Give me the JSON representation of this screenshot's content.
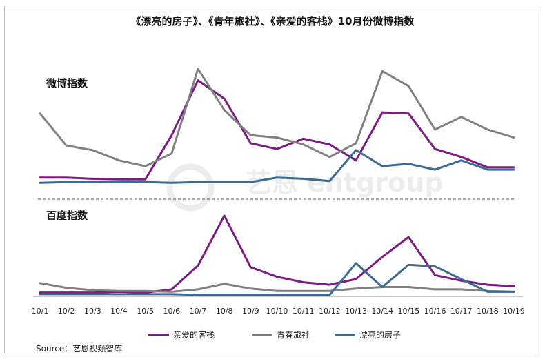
{
  "title": "《漂亮的房子》、《青年旅社》、《亲爱的客栈》10月份微博指数",
  "watermark": "艺恩 entgroup",
  "source": "Source：艺恩视频智库",
  "colors": {
    "亲爱的客栈": "#7b1a83",
    "青春旅社": "#808080",
    "漂亮的房子": "#3a6a96"
  },
  "chart_data": [
    {
      "type": "line",
      "title": "微博指数",
      "categories": [
        "10/1",
        "10/2",
        "10/3",
        "10/4",
        "10/5",
        "10/6",
        "10/7",
        "10/8",
        "10/9",
        "10/10",
        "10/11",
        "10/12",
        "10/13",
        "10/14",
        "10/15",
        "10/16",
        "10/17",
        "10/18",
        "10/19"
      ],
      "ylim": [
        0,
        100
      ],
      "grid": false,
      "legend": "bottom",
      "series": [
        {
          "name": "亲爱的客栈",
          "values": [
            5,
            5,
            4,
            3.5,
            3.5,
            42,
            90,
            74,
            35,
            30,
            39,
            34,
            20,
            62,
            61,
            30,
            23,
            14,
            14
          ]
        },
        {
          "name": "青春旅社",
          "values": [
            61,
            33,
            29,
            20,
            15,
            26,
            100,
            64,
            42,
            40,
            34,
            23,
            35,
            98,
            85,
            47,
            58,
            47,
            40
          ]
        },
        {
          "name": "漂亮的房子",
          "values": [
            0.5,
            1,
            1,
            1.5,
            1,
            0.5,
            1,
            1,
            1,
            5,
            4,
            2,
            29,
            15,
            17,
            12,
            20,
            12,
            12
          ]
        }
      ]
    },
    {
      "type": "line",
      "title": "百度指数",
      "categories": [
        "10/1",
        "10/2",
        "10/3",
        "10/4",
        "10/5",
        "10/6",
        "10/7",
        "10/8",
        "10/9",
        "10/10",
        "10/11",
        "10/12",
        "10/13",
        "10/14",
        "10/15",
        "10/16",
        "10/17",
        "10/18",
        "10/19"
      ],
      "ylim": [
        0,
        100
      ],
      "grid": false,
      "legend": "bottom",
      "series": [
        {
          "name": "亲爱的客栈",
          "values": [
            3,
            3,
            3,
            4,
            3,
            7,
            37,
            100,
            35,
            23,
            16,
            13,
            20,
            48,
            73,
            25,
            18,
            13,
            11
          ]
        },
        {
          "name": "青春旅社",
          "values": [
            15,
            9,
            6,
            5,
            5,
            4,
            7,
            14,
            8,
            5,
            5,
            5,
            8,
            10,
            10,
            7,
            7,
            5,
            4
          ]
        },
        {
          "name": "漂亮的房子",
          "values": [
            1,
            1,
            1,
            1,
            1,
            1,
            0,
            0,
            0,
            0,
            0,
            0,
            40,
            10,
            38,
            36,
            20,
            4,
            4
          ]
        }
      ]
    }
  ]
}
